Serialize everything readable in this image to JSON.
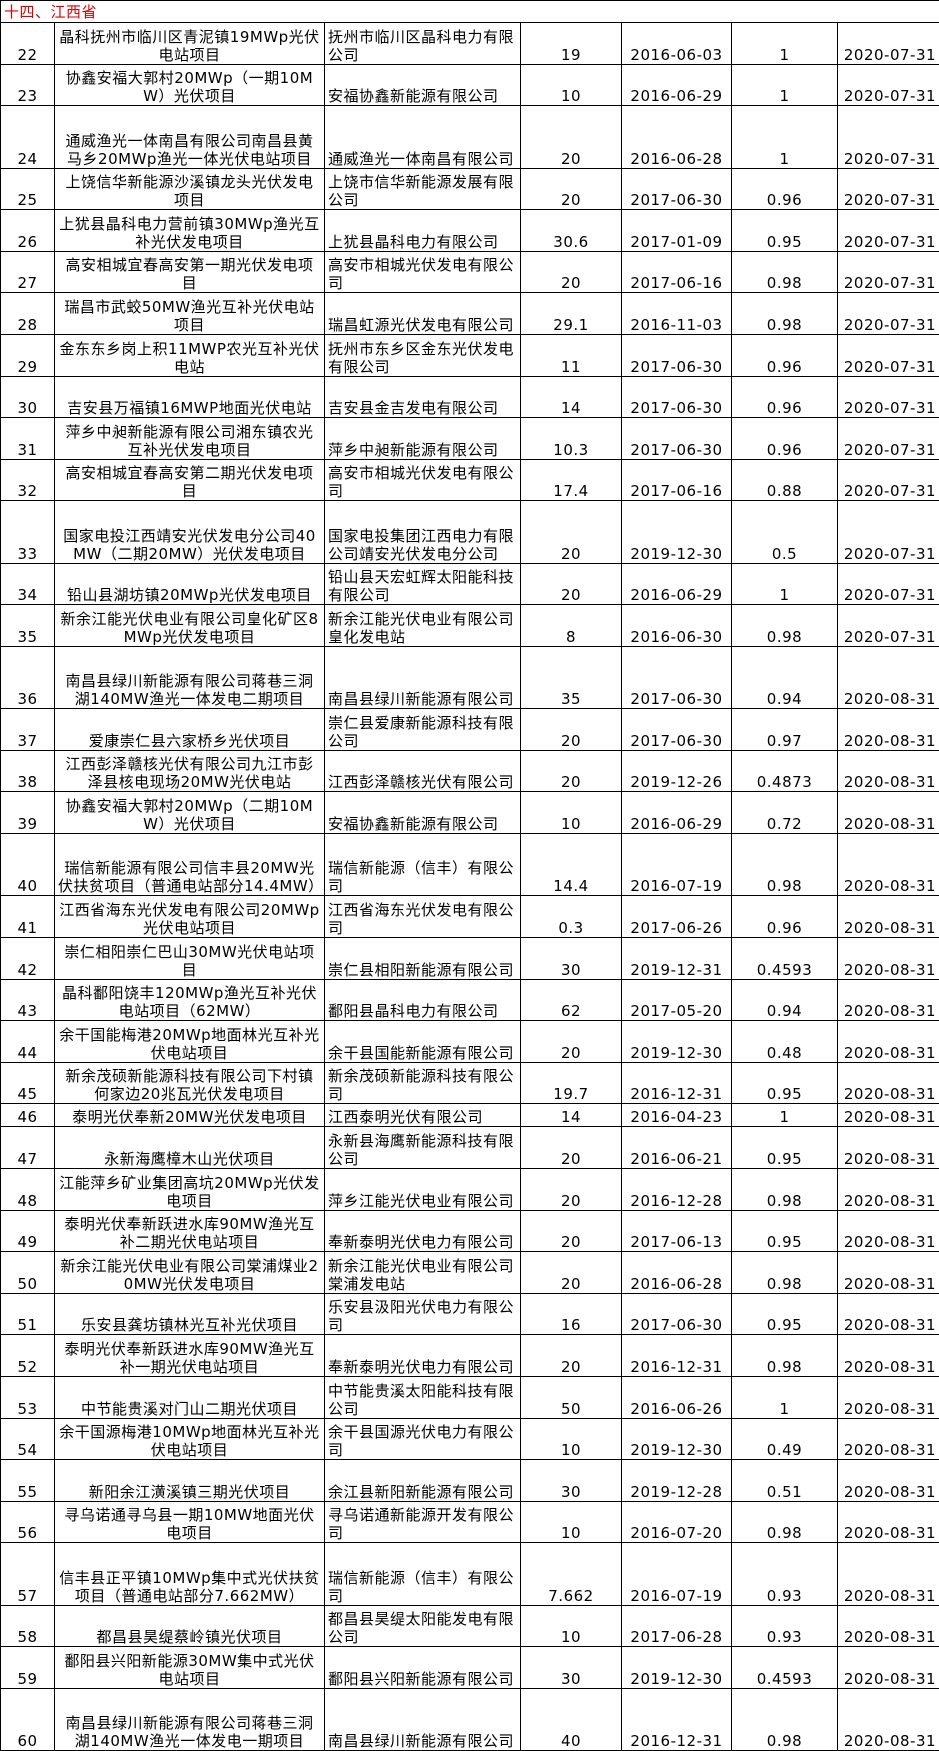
{
  "title": "十四、江西省",
  "table": {
    "rows": [
      [
        22,
        "晶科抚州市临川区青泥镇19MWp光伏电站项目",
        "抚州市临川区晶科电力有限公司",
        19,
        "2016-06-03",
        1,
        "2020-07-31"
      ],
      [
        23,
        "协鑫安福大郭村20MWp（一期10MW）光伏项目",
        "安福协鑫新能源有限公司",
        10,
        "2016-06-29",
        1,
        "2020-07-31"
      ],
      [
        24,
        "通威渔光一体南昌有限公司南昌县黄马乡20MWp渔光一体光伏电站项目",
        "通威渔光一体南昌有限公司",
        20,
        "2016-06-28",
        1,
        "2020-07-31"
      ],
      [
        25,
        "上饶信华新能源沙溪镇龙头光伏发电项目",
        "上饶市信华新能源发展有限公司",
        20,
        "2017-06-30",
        0.96,
        "2020-07-31"
      ],
      [
        26,
        "上犹县晶科电力营前镇30MWp渔光互补光伏发电项目",
        "上犹县晶科电力有限公司",
        30.6,
        "2017-01-09",
        0.95,
        "2020-07-31"
      ],
      [
        27,
        "高安相城宜春高安第一期光伏发电项目",
        "高安市相城光伏发电有限公司",
        20,
        "2017-06-16",
        0.98,
        "2020-07-31"
      ],
      [
        28,
        "瑞昌市武蛟50MW渔光互补光伏电站项目",
        "瑞昌虹源光伏发电有限公司",
        29.1,
        "2016-11-03",
        0.98,
        "2020-07-31"
      ],
      [
        29,
        "金东东乡岗上积11MWP农光互补光伏电站",
        "抚州市东乡区金东光伏发电有限公司",
        11,
        "2017-06-30",
        0.96,
        "2020-07-31"
      ],
      [
        30,
        "吉安县万福镇16MWP地面光伏电站",
        "吉安县金吉发电有限公司",
        14,
        "2017-06-30",
        0.96,
        "2020-07-31"
      ],
      [
        31,
        "萍乡中昶新能源有限公司湘东镇农光互补光伏发电项目",
        "萍乡中昶新能源有限公司",
        10.3,
        "2017-06-30",
        0.96,
        "2020-07-31"
      ],
      [
        32,
        "高安相城宜春高安第二期光伏发电项目",
        "高安市相城光伏发电有限公司",
        17.4,
        "2017-06-16",
        0.88,
        "2020-07-31"
      ],
      [
        33,
        "国家电投江西靖安光伏发电分公司40MW（二期20MW）光伏发电项目",
        "国家电投集团江西电力有限公司靖安光伏发电分公司",
        20,
        "2019-12-30",
        0.5,
        "2020-07-31"
      ],
      [
        34,
        "铅山县湖坊镇20MWp光伏发电项目",
        "铅山县天宏虹辉太阳能科技有限公司",
        20,
        "2016-06-29",
        1,
        "2020-07-31"
      ],
      [
        35,
        "新余江能光伏电业有限公司皇化矿区8MWp光伏发电项目",
        "新余江能光伏电业有限公司皇化发电站",
        8,
        "2016-06-30",
        0.98,
        "2020-07-31"
      ],
      [
        36,
        "南昌县绿川新能源有限公司蒋巷三洞湖140MW渔光一体发电二期项目",
        "南昌县绿川新能源有限公司",
        35,
        "2017-06-30",
        0.94,
        "2020-08-31"
      ],
      [
        37,
        "爱康崇仁县六家桥乡光伏项目",
        "崇仁县爱康新能源科技有限公司",
        20,
        "2017-06-30",
        0.97,
        "2020-08-31"
      ],
      [
        38,
        "江西彭泽赣核光伏有限公司九江市彭泽县核电现场20MW光伏电站",
        "江西彭泽赣核光伏有限公司",
        20,
        "2019-12-26",
        0.4873,
        "2020-08-31"
      ],
      [
        39,
        "协鑫安福大郭村20MWp（二期10MW）光伏项目",
        "安福协鑫新能源有限公司",
        10,
        "2016-06-29",
        0.72,
        "2020-08-31"
      ],
      [
        40,
        "瑞信新能源有限公司信丰县20MW光伏扶贫项目（普通电站部分14.4MW）",
        "瑞信新能源（信丰）有限公司",
        14.4,
        "2016-07-19",
        0.98,
        "2020-08-31"
      ],
      [
        41,
        "江西省海东光伏发电有限公司20MWp光伏电站项目",
        "江西省海东光伏发电有限公司",
        0.3,
        "2017-06-26",
        0.96,
        "2020-08-31"
      ],
      [
        42,
        "崇仁相阳崇仁巴山30MW光伏电站项目",
        "崇仁县相阳新能源有限公司",
        30,
        "2019-12-31",
        0.4593,
        "2020-08-31"
      ],
      [
        43,
        "晶科鄱阳饶丰120MWp渔光互补光伏电站项目（62MW）",
        "鄱阳县晶科电力有限公司",
        62,
        "2017-05-20",
        0.94,
        "2020-08-31"
      ],
      [
        44,
        "余干国能梅港20MWp地面林光互补光伏电站项目",
        "余干县国能新能源有限公司",
        20,
        "2019-12-30",
        0.48,
        "2020-08-31"
      ],
      [
        45,
        "新余茂硕新能源科技有限公司下村镇何家边20兆瓦光伏发电项目",
        "新余茂硕新能源科技有限公司",
        19.7,
        "2016-12-31",
        0.95,
        "2020-08-31"
      ],
      [
        46,
        "泰明光伏奉新20MW光伏发电项目",
        "江西泰明光伏有限公司",
        14,
        "2016-04-23",
        1,
        "2020-08-31"
      ],
      [
        47,
        "永新海鹰樟木山光伏项目",
        "永新县海鹰新能源科技有限公司",
        20,
        "2016-06-21",
        0.95,
        "2020-08-31"
      ],
      [
        48,
        "江能萍乡矿业集团高坑20MWp光伏发电项目",
        "萍乡江能光伏电业有限公司",
        20,
        "2016-12-28",
        0.98,
        "2020-08-31"
      ],
      [
        49,
        "泰明光伏奉新跃进水库90MW渔光互补二期光伏电站项目",
        "奉新泰明光伏电力有限公司",
        20,
        "2017-06-13",
        0.95,
        "2020-08-31"
      ],
      [
        50,
        "新余江能光伏电业有限公司棠浦煤业20MW光伏发电项目",
        "新余江能光伏电业有限公司棠浦发电站",
        20,
        "2016-06-28",
        0.98,
        "2020-08-31"
      ],
      [
        51,
        "乐安县龚坊镇林光互补光伏项目",
        "乐安县汲阳光伏电力有限公司",
        16,
        "2017-06-30",
        0.95,
        "2020-08-31"
      ],
      [
        52,
        "泰明光伏奉新跃进水库90MW渔光互补一期光伏电站项目",
        "奉新泰明光伏电力有限公司",
        20,
        "2016-12-31",
        0.98,
        "2020-08-31"
      ],
      [
        53,
        "中节能贵溪对门山二期光伏项目",
        "中节能贵溪太阳能科技有限公司",
        50,
        "2016-06-26",
        1,
        "2020-08-31"
      ],
      [
        54,
        "余干国源梅港10MWp地面林光互补光伏电站项目",
        "余干县国源光伏电力有限公司",
        10,
        "2019-12-30",
        0.49,
        "2020-08-31"
      ],
      [
        55,
        "新阳余江潢溪镇三期光伏项目",
        "余江县新阳新能源有限公司",
        30,
        "2019-12-28",
        0.51,
        "2020-08-31"
      ],
      [
        56,
        "寻乌诺通寻乌县一期10MW地面光伏电项目",
        "寻乌诺通新能源开发有限公司",
        10,
        "2016-07-20",
        0.98,
        "2020-08-31"
      ],
      [
        57,
        "信丰县正平镇10MWp集中式光伏扶贫项目（普通电站部分7.662MW）",
        "瑞信新能源（信丰）有限公司",
        7.662,
        "2016-07-19",
        0.93,
        "2020-08-31"
      ],
      [
        58,
        "都昌县昊缇蔡岭镇光伏项目",
        "都昌县昊缇太阳能发电有限公司",
        10,
        "2017-06-28",
        0.93,
        "2020-08-31"
      ],
      [
        59,
        "鄱阳县兴阳新能源30MW集中式光伏电站项目",
        "鄱阳县兴阳新能源有限公司",
        30,
        "2019-12-30",
        0.4593,
        "2020-08-31"
      ],
      [
        60,
        "南昌县绿川新能源有限公司蒋巷三洞湖140MW渔光一体发电一期项目",
        "南昌县绿川新能源有限公司",
        40,
        "2016-12-31",
        0.98,
        "2020-08-31"
      ]
    ]
  }
}
